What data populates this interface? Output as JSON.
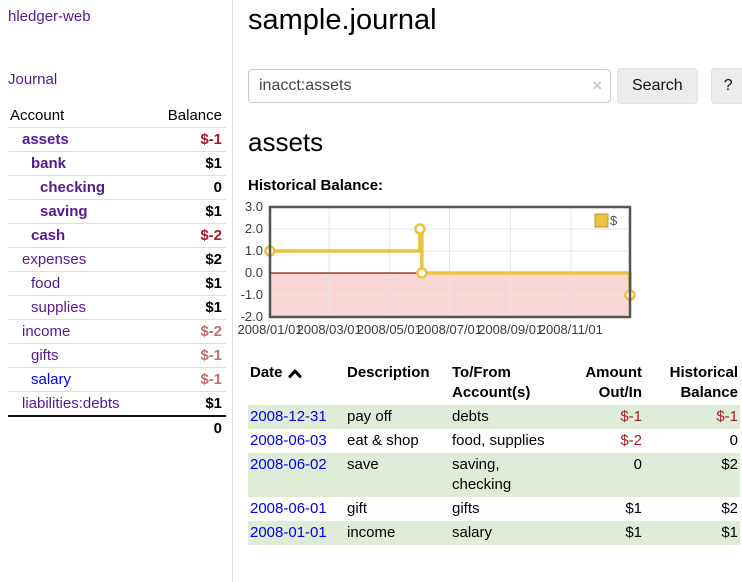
{
  "app": {
    "brand": "hledger-web",
    "nav": {
      "journal": "Journal"
    }
  },
  "sidebar": {
    "header": {
      "account": "Account",
      "balance": "Balance"
    },
    "accounts": [
      {
        "name": "assets",
        "balance": "$-1"
      },
      {
        "name": "bank",
        "balance": "$1"
      },
      {
        "name": "checking",
        "balance": "0"
      },
      {
        "name": "saving",
        "balance": "$1"
      },
      {
        "name": "cash",
        "balance": "$-2"
      },
      {
        "name": "expenses",
        "balance": "$2"
      },
      {
        "name": "food",
        "balance": "$1"
      },
      {
        "name": "supplies",
        "balance": "$1"
      },
      {
        "name": "income",
        "balance": "$-2"
      },
      {
        "name": "gifts",
        "balance": "$-1"
      },
      {
        "name": "salary",
        "balance": "$-1"
      },
      {
        "name": "liabilities:debts",
        "balance": "$1"
      }
    ],
    "total": "0"
  },
  "main": {
    "title": "sample.journal",
    "search": {
      "value": "inacct:assets",
      "clear_icon": "×",
      "search_label": "Search",
      "help_label": "?"
    },
    "account_heading": "assets",
    "chart_title": "Historical Balance:"
  },
  "chart_data": {
    "type": "line",
    "title": "Historical Balance",
    "step": true,
    "series": [
      {
        "name": "$",
        "color": "#edc240",
        "points": [
          [
            "2008-01-01",
            1
          ],
          [
            "2008-06-01",
            2
          ],
          [
            "2008-06-03",
            0
          ],
          [
            "2008-12-31",
            -1
          ]
        ]
      }
    ],
    "x_range": [
      "2008-01-01",
      "2008-12-31"
    ],
    "ylim": [
      -2,
      3
    ],
    "y_ticks": [
      "3.0",
      "2.0",
      "1.0",
      "0.0",
      "-1.0",
      "-2.0"
    ],
    "x_ticks": [
      "2008/01/01",
      "2008/03/01",
      "2008/05/01",
      "2008/07/01",
      "2008/09/01",
      "2008/11/01"
    ],
    "legend": {
      "label": "$",
      "position": "top-right"
    },
    "grid": true,
    "negative_region_color": "#f9d7d7",
    "zero_line_color": "#8b1a1a",
    "border_color": "#545454"
  },
  "register": {
    "headers": {
      "date": "Date",
      "description": "Description",
      "tofrom": "To/From Account(s)",
      "amount": "Amount Out/In",
      "balance": "Historical Balance"
    },
    "rows": [
      {
        "date": "2008-12-31",
        "description": "pay off",
        "accounts": "debts",
        "amount": "$-1",
        "balance": "$-1"
      },
      {
        "date": "2008-06-03",
        "description": "eat & shop",
        "accounts": "food, supplies",
        "amount": "$-2",
        "balance": "0"
      },
      {
        "date": "2008-06-02",
        "description": "save",
        "accounts": "saving, checking",
        "amount": "0",
        "balance": "$2"
      },
      {
        "date": "2008-06-01",
        "description": "gift",
        "accounts": "gifts",
        "amount": "$1",
        "balance": "$2"
      },
      {
        "date": "2008-01-01",
        "description": "income",
        "accounts": "salary",
        "amount": "$1",
        "balance": "$1"
      }
    ]
  },
  "colors": {
    "link_purple": "#551a8b",
    "link_blue": "#0000dd",
    "negative_strong": "#9d1d1d",
    "negative_soft": "#bd7373",
    "row_stripe_green": "#deecd8",
    "chart_series_gold": "#edc240",
    "chart_negative_band": "#f9d7d7",
    "chart_zero_line": "#8b1a1a"
  },
  "icons": {
    "clear": "x-clear-icon",
    "sort": "chevron-up-icon"
  }
}
